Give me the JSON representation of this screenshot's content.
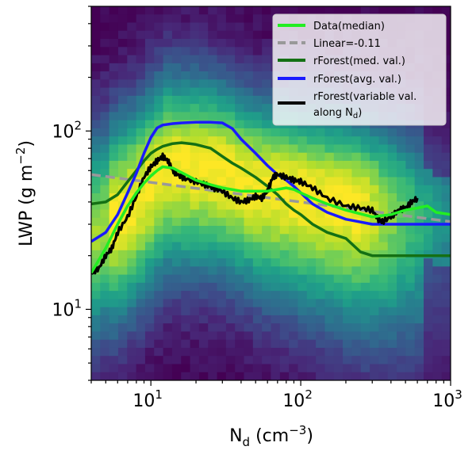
{
  "chart_data": {
    "type": "line",
    "xlabel": "N",
    "xlabel_sub": "d",
    "xlabel_unit_pre": " (cm",
    "xlabel_unit_sup": "−3",
    "xlabel_unit_post": ")",
    "ylabel_pre": "LWP (g m",
    "ylabel_sup": "−2",
    "ylabel_post": ")",
    "x_scale": "log",
    "y_scale": "log",
    "xlim": [
      4,
      1000
    ],
    "ylim": [
      4,
      500
    ],
    "x_ticks": [
      {
        "value": 10,
        "base": "10",
        "exp": "1"
      },
      {
        "value": 100,
        "base": "10",
        "exp": "2"
      },
      {
        "value": 1000,
        "base": "10",
        "exp": "3"
      }
    ],
    "y_ticks": [
      {
        "value": 10,
        "base": "10",
        "exp": "1"
      },
      {
        "value": 100,
        "base": "10",
        "exp": "2"
      }
    ],
    "grid": false,
    "legend_position": "top-right",
    "background": "2D histogram density (viridis colormap)",
    "series": [
      {
        "name": "Data(median)",
        "color": "#22ee22",
        "style": "solid",
        "x": [
          4,
          5,
          6,
          7,
          8,
          9,
          10,
          11,
          12,
          14,
          17,
          20,
          25,
          30,
          40,
          50,
          60,
          70,
          80,
          90,
          100,
          120,
          150,
          200,
          300,
          400,
          500,
          600,
          700,
          800,
          1000
        ],
        "y": [
          16,
          22,
          30,
          38,
          45,
          51,
          56,
          60,
          63,
          62,
          57,
          53,
          50,
          48,
          46,
          46,
          46,
          47,
          48,
          47,
          45,
          42,
          39,
          36,
          33,
          34,
          36,
          37,
          38,
          35,
          34
        ]
      },
      {
        "name": "Linear=-0.11",
        "color": "#999999",
        "style": "dashed",
        "x": [
          4,
          1000
        ],
        "y": [
          57,
          31
        ]
      },
      {
        "name": "rForest(med. val.)",
        "color": "#147014",
        "style": "solid",
        "x": [
          4,
          5,
          6,
          7,
          8,
          9,
          10,
          11,
          12,
          14,
          16,
          18,
          20,
          25,
          30,
          35,
          40,
          50,
          60,
          70,
          80,
          90,
          100,
          120,
          150,
          200,
          250,
          300,
          400,
          500,
          1000
        ],
        "y": [
          39,
          40,
          44,
          52,
          60,
          68,
          75,
          79,
          82,
          85,
          86,
          85,
          84,
          80,
          72,
          66,
          62,
          55,
          49,
          44,
          39,
          36,
          34,
          30,
          27,
          25,
          21,
          20,
          20,
          20,
          20
        ]
      },
      {
        "name": "rForest(avg. val.)",
        "color": "#1a1aff",
        "style": "solid",
        "x": [
          4,
          5,
          6,
          7,
          8,
          9,
          10,
          11,
          12,
          14,
          16,
          20,
          25,
          30,
          35,
          40,
          50,
          60,
          70,
          80,
          90,
          100,
          120,
          150,
          200,
          300,
          500,
          1000
        ],
        "y": [
          24,
          27,
          34,
          45,
          58,
          75,
          92,
          104,
          108,
          110,
          111,
          112,
          112,
          111,
          103,
          90,
          75,
          64,
          57,
          53,
          49,
          45,
          39,
          35,
          32,
          30,
          30,
          30
        ]
      },
      {
        "name": "rForest(variable val.\n along N_d)",
        "color": "#000000",
        "style": "solid",
        "x": [
          4,
          4.5,
          5,
          5.5,
          6,
          7,
          8,
          9,
          10,
          11,
          12,
          13,
          14,
          15,
          17,
          20,
          23,
          26,
          30,
          35,
          40,
          45,
          50,
          55,
          60,
          65,
          70,
          80,
          90,
          100,
          120,
          150,
          200,
          250,
          300,
          330,
          350,
          400,
          450,
          500,
          550,
          600
        ],
        "y": [
          16,
          17,
          20,
          22,
          27,
          33,
          43,
          55,
          63,
          68,
          72,
          68,
          60,
          57,
          54,
          52,
          50,
          48,
          46,
          42,
          40,
          41,
          43,
          42,
          46,
          55,
          57,
          55,
          53,
          52,
          48,
          42,
          38,
          37,
          36,
          32,
          31,
          33,
          36,
          37,
          40,
          42
        ]
      }
    ],
    "legend_entries": [
      {
        "label": "Data(median)",
        "color": "#22ee22",
        "style": "solid"
      },
      {
        "label": "Linear=-0.11",
        "color": "#999999",
        "style": "dashed"
      },
      {
        "label": "rForest(med. val.)",
        "color": "#147014",
        "style": "solid"
      },
      {
        "label": "rForest(avg. val.)",
        "color": "#1a1aff",
        "style": "solid"
      },
      {
        "label": "rForest(variable val.",
        "label_line2_pre": " along N",
        "label_line2_sub": "d",
        "label_line2_post": ")",
        "color": "#000000",
        "style": "solid"
      }
    ]
  }
}
